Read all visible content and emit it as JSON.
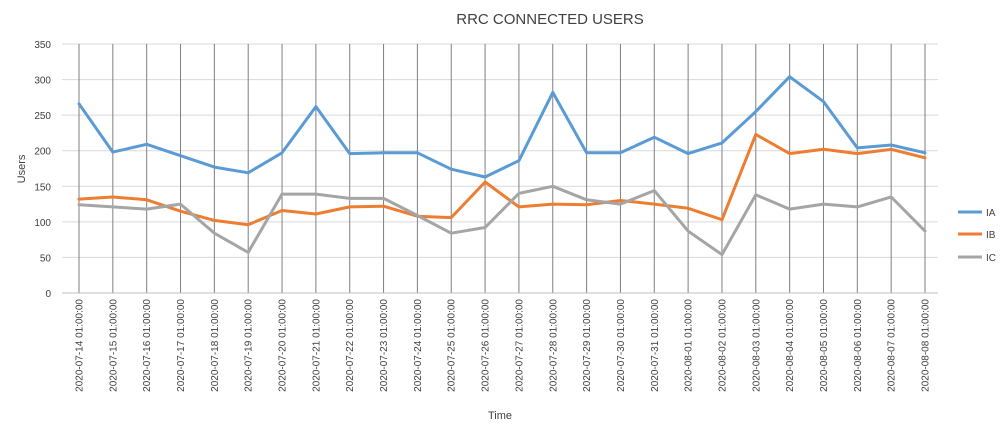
{
  "chart_data": {
    "type": "line",
    "title": "RRC CONNECTED USERS",
    "xlabel": "Time",
    "ylabel": "Users",
    "ylim": [
      0,
      350
    ],
    "yticks": [
      0,
      50,
      100,
      150,
      200,
      250,
      300,
      350
    ],
    "grid": true,
    "legend_position": "right",
    "x": [
      "2020-07-14 01:00:00",
      "2020-07-15 01:00:00",
      "2020-07-16 01:00:00",
      "2020-07-17 01:00:00",
      "2020-07-18 01:00:00",
      "2020-07-19 01:00:00",
      "2020-07-20 01:00:00",
      "2020-07-21 01:00:00",
      "2020-07-22 01:00:00",
      "2020-07-23 01:00:00",
      "2020-07-24 01:00:00",
      "2020-07-25 01:00:00",
      "2020-07-26 01:00:00",
      "2020-07-27 01:00:00",
      "2020-07-28 01:00:00",
      "2020-07-29 01:00:00",
      "2020-07-30 01:00:00",
      "2020-07-31 01:00:00",
      "2020-08-01 01:00:00",
      "2020-08-02 01:00:00",
      "2020-08-03 01:00:00",
      "2020-08-04 01:00:00",
      "2020-08-05 01:00:00",
      "2020-08-06 01:00:00",
      "2020-08-07 01:00:00",
      "2020-08-08 01:00:00"
    ],
    "series": [
      {
        "name": "IA",
        "color": "#5b9bd5",
        "values": [
          266,
          198,
          209,
          193,
          177,
          169,
          197,
          262,
          196,
          197,
          197,
          174,
          163,
          186,
          282,
          197,
          197,
          219,
          196,
          211,
          255,
          304,
          269,
          204,
          208,
          197
        ]
      },
      {
        "name": "IB",
        "color": "#ed7d31",
        "values": [
          132,
          135,
          131,
          115,
          102,
          96,
          116,
          111,
          121,
          122,
          108,
          106,
          156,
          121,
          125,
          124,
          130,
          125,
          119,
          103,
          223,
          196,
          202,
          196,
          202,
          190
        ]
      },
      {
        "name": "IC",
        "color": "#a5a5a5",
        "values": [
          124,
          121,
          118,
          125,
          84,
          57,
          139,
          139,
          133,
          133,
          109,
          84,
          92,
          140,
          150,
          131,
          125,
          144,
          87,
          54,
          138,
          118,
          125,
          121,
          135,
          87
        ]
      }
    ]
  }
}
